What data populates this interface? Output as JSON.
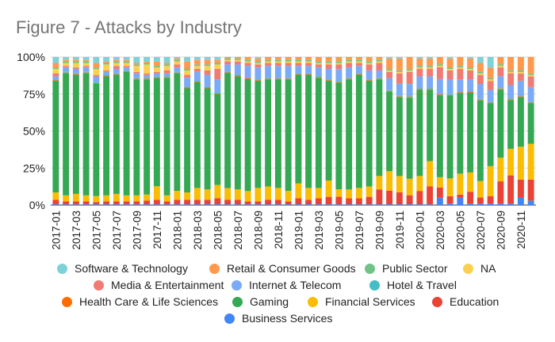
{
  "chart_data": {
    "type": "bar",
    "stacked": true,
    "percent": true,
    "title": "Figure 7 - Attacks by Industry",
    "xlabel": "",
    "ylabel": "",
    "ylim": [
      0,
      100
    ],
    "yticks": [
      "0%",
      "25%",
      "50%",
      "75%",
      "100%"
    ],
    "grid": true,
    "legend_position": "bottom",
    "categories": [
      "2017-01",
      "2017-02",
      "2017-03",
      "2017-04",
      "2017-05",
      "2017-06",
      "2017-07",
      "2017-08",
      "2017-09",
      "2017-10",
      "2017-11",
      "2017-12",
      "2018-01",
      "2018-02",
      "2018-03",
      "2018-04",
      "2018-05",
      "2018-06",
      "2018-07",
      "2018-08",
      "2018-09",
      "2018-10",
      "2018-11",
      "2018-12",
      "2019-01",
      "2019-02",
      "2019-03",
      "2019-04",
      "2019-05",
      "2019-06",
      "2019-07",
      "2019-08",
      "2019-09",
      "2019-10",
      "2019-11",
      "2019-12",
      "2020-01",
      "2020-02",
      "2020-03",
      "2020-04",
      "2020-05",
      "2020-06",
      "2020-07",
      "2020-08",
      "2020-09",
      "2020-10",
      "2020-11",
      "2020-12"
    ],
    "tick_labels": [
      "2017-01",
      "2017-03",
      "2017-05",
      "2017-07",
      "2017-09",
      "2017-11",
      "2018-01",
      "2018-03",
      "2018-05",
      "2018-07",
      "2018-09",
      "2018-11",
      "2019-01",
      "2019-03",
      "2019-05",
      "2019-07",
      "2019-09",
      "2019-11",
      "2020-01",
      "2020-03",
      "2020-05",
      "2020-07",
      "2020-09",
      "2020-11"
    ],
    "series": [
      {
        "name": "Business Services",
        "color": "#4285f4",
        "values": [
          0.5,
          0.5,
          0.5,
          0.5,
          0.5,
          0.5,
          0.5,
          0.5,
          0.5,
          0.5,
          0.5,
          0.5,
          0.5,
          0.5,
          0.5,
          0.5,
          0.5,
          0.5,
          0.5,
          0.5,
          0.5,
          0.5,
          0.5,
          0.5,
          0.5,
          0.5,
          0.5,
          0.5,
          0.5,
          0.5,
          0.5,
          0.5,
          0.5,
          0.5,
          0.5,
          0.5,
          0.5,
          0.5,
          5,
          1,
          5,
          1,
          1,
          1,
          1,
          1,
          5,
          3
        ]
      },
      {
        "name": "Education",
        "color": "#ea4335",
        "values": [
          3,
          2,
          2,
          2,
          1.5,
          2,
          2,
          2,
          2,
          2.5,
          3,
          2,
          3,
          3,
          3,
          3,
          4,
          3,
          3,
          2,
          2,
          3,
          3,
          2,
          4,
          3,
          4,
          5,
          5,
          4,
          4,
          5,
          10,
          9,
          8,
          6,
          9,
          12,
          7,
          5,
          2,
          8,
          4,
          5,
          15,
          19,
          12,
          14
        ]
      },
      {
        "name": "Financial Services",
        "color": "#fbbc04",
        "values": [
          5,
          4,
          5,
          4,
          4,
          4,
          5,
          4,
          4,
          4,
          9,
          4,
          6,
          5,
          8,
          7,
          9,
          8,
          7,
          7,
          9,
          9,
          8,
          7,
          10,
          8,
          7,
          11,
          5,
          6,
          7,
          7,
          9,
          13,
          11,
          11,
          10,
          17,
          7,
          12,
          14,
          13,
          11,
          20,
          16,
          18,
          22,
          24
        ]
      },
      {
        "name": "Gaming",
        "color": "#34a853",
        "values": [
          75,
          82,
          80,
          82,
          75,
          80,
          80,
          83,
          78,
          77,
          72,
          79,
          79,
          70,
          71,
          68,
          61,
          78,
          76,
          76,
          72,
          72,
          73,
          75,
          73,
          76,
          74,
          67,
          71,
          74,
          76,
          71,
          65,
          53,
          53,
          54,
          58,
          48,
          56,
          56,
          54,
          54,
          54,
          42,
          46,
          33,
          33,
          27
        ]
      },
      {
        "name": "Health Care & Life Sciences",
        "color": "#ff6d01",
        "values": [
          0.5,
          0.5,
          0.5,
          0.5,
          0.5,
          0.5,
          0.5,
          0.5,
          0.5,
          0.5,
          0.5,
          0.5,
          0.5,
          0.5,
          0.5,
          0.5,
          0.5,
          0.5,
          0.5,
          0.5,
          0.5,
          0.5,
          0.5,
          0.5,
          0.5,
          0.5,
          0.5,
          0.5,
          0.5,
          0.5,
          0.5,
          0.5,
          0.5,
          0.5,
          0.5,
          0.5,
          0.5,
          0.5,
          0.5,
          0.5,
          0.5,
          0.5,
          0.5,
          0.5,
          0.5,
          0.5,
          0.5,
          0.5
        ]
      },
      {
        "name": "Hotel & Travel",
        "color": "#46bdc6",
        "values": [
          0.5,
          0.5,
          0.5,
          0.5,
          0.5,
          0.5,
          0.5,
          0.5,
          0.5,
          0.5,
          0.5,
          0.5,
          0.5,
          0.5,
          0.5,
          0.5,
          0.5,
          0.5,
          0.5,
          0.5,
          0.5,
          0.5,
          0.5,
          0.5,
          0.5,
          0.5,
          0.5,
          0.5,
          0.5,
          0.5,
          0.5,
          0.5,
          0.5,
          0.5,
          0.5,
          0.5,
          0.5,
          0.5,
          0.5,
          0.5,
          0.5,
          0.5,
          0.5,
          0.5,
          0.5,
          0.5,
          0.5,
          0.5
        ]
      },
      {
        "name": "Internet & Telecom",
        "color": "#7baaf7",
        "values": [
          2,
          3,
          3,
          3,
          4,
          2,
          3,
          2,
          3,
          2,
          2,
          2,
          3,
          6,
          6,
          8,
          9,
          5,
          7,
          8,
          8,
          8,
          8,
          8,
          5,
          5,
          6,
          7,
          8,
          7,
          5,
          6,
          5,
          8,
          8,
          8,
          8,
          8,
          10,
          10,
          8,
          8,
          10,
          8,
          8,
          9,
          10,
          10
        ]
      },
      {
        "name": "Media & Entertainment",
        "color": "#f07b72",
        "values": [
          2,
          1,
          1,
          1,
          1,
          1,
          2,
          1,
          1,
          1,
          1,
          2,
          2,
          2,
          2,
          3,
          7,
          2,
          2,
          2,
          2,
          2,
          2,
          2,
          2,
          2,
          2,
          3,
          3,
          3,
          2,
          4,
          5,
          4,
          7,
          8,
          5,
          5,
          8,
          6,
          7,
          6,
          6,
          6,
          6,
          8,
          5,
          7
        ]
      },
      {
        "name": "NA",
        "color": "#fcd04f",
        "values": [
          3,
          2,
          3,
          2,
          4,
          4,
          2,
          2,
          4,
          6,
          3,
          3,
          2,
          3,
          2,
          3,
          3,
          1,
          1,
          1,
          1,
          1,
          1,
          1,
          1,
          1,
          1,
          1,
          1,
          1,
          1,
          1,
          1,
          1,
          1,
          1,
          1,
          1,
          1,
          1,
          1,
          1,
          1,
          1,
          1,
          1,
          1,
          1
        ]
      },
      {
        "name": "Public Sector",
        "color": "#71c287",
        "values": [
          1,
          1,
          1,
          1,
          1,
          1,
          1,
          1,
          1,
          1,
          1,
          1,
          1,
          1,
          1,
          1,
          1,
          1,
          1,
          1,
          1,
          1,
          1,
          1,
          1,
          1,
          1,
          1,
          1,
          1,
          1,
          1,
          1,
          1,
          1,
          1,
          1,
          1,
          1,
          1,
          1,
          1,
          1,
          1,
          1,
          1,
          1,
          1
        ]
      },
      {
        "name": "Retail & Consumer Goods",
        "color": "#ff994d",
        "values": [
          3,
          1,
          1,
          1,
          3,
          1,
          1,
          1,
          1,
          1,
          3,
          1,
          1,
          5,
          3,
          3,
          2,
          1,
          1,
          2,
          2,
          2,
          2,
          2,
          2,
          2,
          3,
          3,
          3,
          2,
          2,
          3,
          2,
          7,
          8,
          8,
          5,
          5,
          5,
          6,
          6,
          6,
          6,
          7,
          5,
          9,
          9,
          11
        ]
      },
      {
        "name": "Software & Technology",
        "color": "#7ed1d7",
        "values": [
          4,
          2,
          2,
          2,
          4,
          3,
          2,
          2,
          4,
          3,
          3,
          4,
          1,
          3,
          2,
          2,
          2,
          0,
          0,
          0,
          1,
          0,
          0,
          0,
          0,
          0,
          0,
          0,
          0,
          0,
          0,
          0,
          0,
          1,
          1,
          0,
          1,
          1,
          0,
          1,
          0,
          1,
          4,
          7,
          0,
          0,
          0,
          0
        ]
      }
    ],
    "legend_rows": [
      [
        "Software & Technology",
        "Retail & Consumer Goods",
        "Public Sector",
        "NA"
      ],
      [
        "Media & Entertainment",
        "Internet & Telecom",
        "Hotel & Travel"
      ],
      [
        "Health Care & Life Sciences",
        "Gaming",
        "Financial Services",
        "Education"
      ],
      [
        "Business Services"
      ]
    ]
  }
}
